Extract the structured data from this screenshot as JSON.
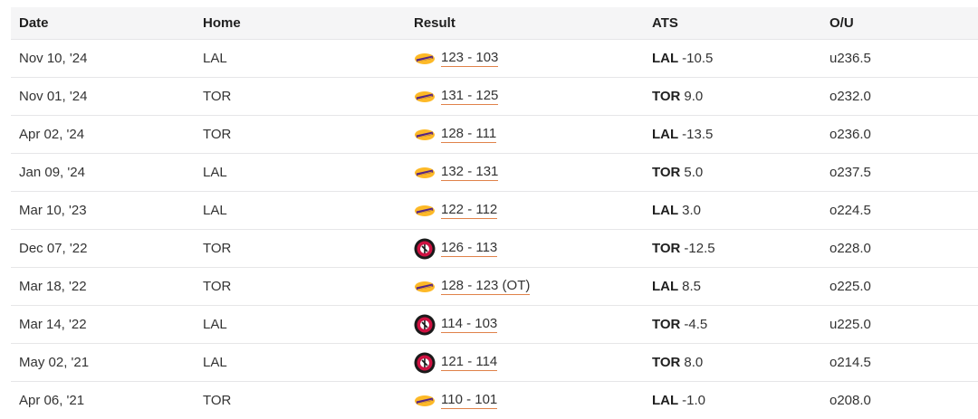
{
  "columns": {
    "date": "Date",
    "home": "Home",
    "result": "Result",
    "ats": "ATS",
    "ou": "O/U"
  },
  "colors": {
    "score_underline": "#e0824a",
    "lakers_purple": "#552583",
    "lakers_gold": "#fdb927",
    "raptors_red": "#ce1141",
    "raptors_black": "#1a1a1a"
  },
  "rows": [
    {
      "date": "Nov 10, '24",
      "home": "LAL",
      "winner_icon": "lakers-logo-icon",
      "score": "123 - 103",
      "ats_team": "LAL",
      "ats_line": "-10.5",
      "ou": "u236.5"
    },
    {
      "date": "Nov 01, '24",
      "home": "TOR",
      "winner_icon": "lakers-logo-icon",
      "score": "131 - 125",
      "ats_team": "TOR",
      "ats_line": "9.0",
      "ou": "o232.0"
    },
    {
      "date": "Apr 02, '24",
      "home": "TOR",
      "winner_icon": "lakers-logo-icon",
      "score": "128 - 111",
      "ats_team": "LAL",
      "ats_line": "-13.5",
      "ou": "o236.0"
    },
    {
      "date": "Jan 09, '24",
      "home": "LAL",
      "winner_icon": "lakers-logo-icon",
      "score": "132 - 131",
      "ats_team": "TOR",
      "ats_line": "5.0",
      "ou": "o237.5"
    },
    {
      "date": "Mar 10, '23",
      "home": "LAL",
      "winner_icon": "lakers-logo-icon",
      "score": "122 - 112",
      "ats_team": "LAL",
      "ats_line": "3.0",
      "ou": "o224.5"
    },
    {
      "date": "Dec 07, '22",
      "home": "TOR",
      "winner_icon": "raptors-logo-icon",
      "score": "126 - 113",
      "ats_team": "TOR",
      "ats_line": "-12.5",
      "ou": "o228.0"
    },
    {
      "date": "Mar 18, '22",
      "home": "TOR",
      "winner_icon": "lakers-logo-icon",
      "score": "128 - 123 (OT)",
      "ats_team": "LAL",
      "ats_line": "8.5",
      "ou": "o225.0"
    },
    {
      "date": "Mar 14, '22",
      "home": "LAL",
      "winner_icon": "raptors-logo-icon",
      "score": "114 - 103",
      "ats_team": "TOR",
      "ats_line": "-4.5",
      "ou": "u225.0"
    },
    {
      "date": "May 02, '21",
      "home": "LAL",
      "winner_icon": "raptors-logo-icon",
      "score": "121 - 114",
      "ats_team": "TOR",
      "ats_line": "8.0",
      "ou": "o214.5"
    },
    {
      "date": "Apr 06, '21",
      "home": "TOR",
      "winner_icon": "lakers-logo-icon",
      "score": "110 - 101",
      "ats_team": "LAL",
      "ats_line": "-1.0",
      "ou": "o208.0"
    }
  ]
}
